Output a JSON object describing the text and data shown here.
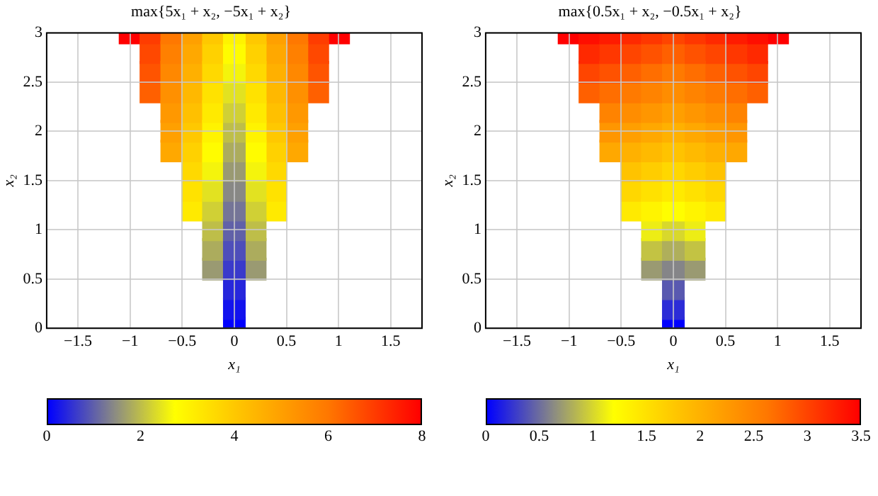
{
  "chart_data": [
    {
      "type": "scatter",
      "title": "max{5x₁ + x₂, −5x₁ + x₂}",
      "xlabel": "x₁",
      "ylabel": "x₂",
      "xlim": [
        -1.8,
        1.8
      ],
      "xticks": [
        -1.5,
        -1,
        -0.5,
        0,
        0.5,
        1,
        1.5
      ],
      "ylim": [
        0,
        3
      ],
      "yticks": [
        0,
        0.5,
        1,
        1.5,
        2,
        2.5,
        3
      ],
      "grid": true,
      "marker": "square",
      "clim": [
        0,
        8
      ],
      "cticks": [
        0,
        2,
        4,
        6,
        8
      ],
      "series": [
        {
          "x": [
            0,
            0,
            0,
            0,
            0,
            0,
            0,
            0,
            0,
            0,
            0,
            0,
            0,
            0,
            0,
            0
          ],
          "values": [
            0,
            0.2,
            0.4,
            0.6,
            0.8,
            1,
            1.2,
            1.4,
            1.6,
            1.8,
            2,
            2.2,
            2.4,
            2.6,
            2.8,
            3
          ],
          "cvalues": [
            0,
            0.2,
            0.4,
            0.6,
            0.8,
            1,
            1.2,
            1.4,
            1.6,
            1.8,
            2,
            2.2,
            2.4,
            2.6,
            2.8,
            3
          ],
          "colors": [
            "#0000ff",
            "#1313ee",
            "#2727dc",
            "#3a3acb",
            "#4e4eba",
            "#6161a8",
            "#757597",
            "#888885",
            "#9a9a72",
            "#acac5d",
            "#bebe49",
            "#d0d035",
            "#e2e221",
            "#f4f40c",
            "#fffc00",
            "#fff300"
          ]
        },
        {
          "x": [
            -0.2,
            -0.2,
            -0.2,
            -0.2,
            -0.2,
            -0.2,
            -0.2,
            -0.2,
            -0.2,
            -0.2,
            -0.2,
            -0.2,
            -0.2
          ],
          "values": [
            0.6,
            0.8,
            1,
            1.2,
            1.4,
            1.6,
            1.8,
            2,
            2.2,
            2.4,
            2.6,
            2.8,
            3
          ],
          "cvalues": [
            1.6,
            1.8,
            2,
            2.2,
            2.4,
            2.6,
            2.8,
            3,
            3.2,
            3.4,
            3.6,
            3.8,
            4
          ],
          "colors": [
            "#9a9a72",
            "#acac5d",
            "#bebe49",
            "#d0d035",
            "#e2e221",
            "#f4f40c",
            "#fffc00",
            "#fff300",
            "#ffea00",
            "#ffe200",
            "#ffd900",
            "#ffd100",
            "#ffc800"
          ]
        },
        {
          "x": [
            0.2,
            0.2,
            0.2,
            0.2,
            0.2,
            0.2,
            0.2,
            0.2,
            0.2,
            0.2,
            0.2,
            0.2,
            0.2
          ],
          "values": [
            0.6,
            0.8,
            1,
            1.2,
            1.4,
            1.6,
            1.8,
            2,
            2.2,
            2.4,
            2.6,
            2.8,
            3
          ],
          "cvalues": [
            1.6,
            1.8,
            2,
            2.2,
            2.4,
            2.6,
            2.8,
            3,
            3.2,
            3.4,
            3.6,
            3.8,
            4
          ],
          "colors": [
            "#9a9a72",
            "#acac5d",
            "#bebe49",
            "#d0d035",
            "#e2e221",
            "#f4f40c",
            "#fffc00",
            "#fff300",
            "#ffea00",
            "#ffe200",
            "#ffd900",
            "#ffd100",
            "#ffc800"
          ]
        },
        {
          "x": [
            -0.4,
            -0.4,
            -0.4,
            -0.4,
            -0.4,
            -0.4,
            -0.4,
            -0.4,
            -0.4,
            -0.4
          ],
          "values": [
            1.2,
            1.4,
            1.6,
            1.8,
            2,
            2.2,
            2.4,
            2.6,
            2.8,
            3
          ],
          "cvalues": [
            3.2,
            3.4,
            3.6,
            3.8,
            4,
            4.2,
            4.4,
            4.6,
            4.8,
            5
          ],
          "colors": [
            "#ffea00",
            "#ffe200",
            "#ffd900",
            "#ffd100",
            "#ffc800",
            "#ffc000",
            "#ffb800",
            "#ffb000",
            "#ffa800",
            "#ffa000"
          ]
        },
        {
          "x": [
            0.4,
            0.4,
            0.4,
            0.4,
            0.4,
            0.4,
            0.4,
            0.4,
            0.4,
            0.4
          ],
          "values": [
            1.2,
            1.4,
            1.6,
            1.8,
            2,
            2.2,
            2.4,
            2.6,
            2.8,
            3
          ],
          "cvalues": [
            3.2,
            3.4,
            3.6,
            3.8,
            4,
            4.2,
            4.4,
            4.6,
            4.8,
            5
          ],
          "colors": [
            "#ffea00",
            "#ffe200",
            "#ffd900",
            "#ffd100",
            "#ffc800",
            "#ffc000",
            "#ffb800",
            "#ffb000",
            "#ffa800",
            "#ffa000"
          ]
        },
        {
          "x": [
            -0.6,
            -0.6,
            -0.6,
            -0.6,
            -0.6,
            -0.6,
            -0.6
          ],
          "values": [
            1.8,
            2,
            2.2,
            2.4,
            2.6,
            2.8,
            3
          ],
          "cvalues": [
            4.8,
            5,
            5.2,
            5.4,
            5.6,
            5.8,
            6
          ],
          "colors": [
            "#ffa800",
            "#ffa000",
            "#ff9800",
            "#ff9000",
            "#ff8800",
            "#ff8000",
            "#ff7800"
          ]
        },
        {
          "x": [
            0.6,
            0.6,
            0.6,
            0.6,
            0.6,
            0.6,
            0.6
          ],
          "values": [
            1.8,
            2,
            2.2,
            2.4,
            2.6,
            2.8,
            3
          ],
          "cvalues": [
            4.8,
            5,
            5.2,
            5.4,
            5.6,
            5.8,
            6
          ],
          "colors": [
            "#ffa800",
            "#ffa000",
            "#ff9800",
            "#ff9000",
            "#ff8800",
            "#ff8000",
            "#ff7800"
          ]
        },
        {
          "x": [
            -0.8,
            -0.8,
            -0.8,
            -0.8
          ],
          "values": [
            2.4,
            2.6,
            2.8,
            3
          ],
          "cvalues": [
            6.4,
            6.6,
            6.8,
            7
          ],
          "colors": [
            "#ff6000",
            "#ff5400",
            "#ff4800",
            "#ff3c00"
          ]
        },
        {
          "x": [
            0.8,
            0.8,
            0.8,
            0.8
          ],
          "values": [
            2.4,
            2.6,
            2.8,
            3
          ],
          "cvalues": [
            6.4,
            6.6,
            6.8,
            7
          ],
          "colors": [
            "#ff6000",
            "#ff5400",
            "#ff4800",
            "#ff3c00"
          ]
        },
        {
          "x": [
            -1
          ],
          "values": [
            3
          ],
          "cvalues": [
            8
          ],
          "color": "#ff0000"
        },
        {
          "x": [
            1
          ],
          "values": [
            3
          ],
          "cvalues": [
            8
          ],
          "color": "#ff0000"
        }
      ]
    },
    {
      "type": "scatter",
      "title": "max{0.5x₁ + x₂, −0.5x₁ + x₂}",
      "xlabel": "x₁",
      "ylabel": "x₂",
      "xlim": [
        -1.8,
        1.8
      ],
      "xticks": [
        -1.5,
        -1,
        -0.5,
        0,
        0.5,
        1,
        1.5
      ],
      "ylim": [
        0,
        3
      ],
      "yticks": [
        0,
        0.5,
        1,
        1.5,
        2,
        2.5,
        3
      ],
      "grid": true,
      "marker": "square",
      "clim": [
        0,
        3.5
      ],
      "cticks": [
        0,
        0.5,
        1,
        1.5,
        2,
        2.5,
        3,
        3.5
      ],
      "series": [
        {
          "x": [
            0,
            0,
            0,
            0,
            0,
            0,
            0,
            0,
            0,
            0,
            0,
            0,
            0,
            0,
            0,
            0
          ],
          "values": [
            0,
            0.2,
            0.4,
            0.6,
            0.8,
            1,
            1.2,
            1.4,
            1.6,
            1.8,
            2,
            2.2,
            2.4,
            2.6,
            2.8,
            3
          ],
          "cvalues": [
            0,
            0.2,
            0.4,
            0.6,
            0.8,
            1,
            1.2,
            1.4,
            1.6,
            1.8,
            2,
            2.2,
            2.4,
            2.6,
            2.8,
            3
          ],
          "colors": [
            "#0000ff",
            "#2c2cd7",
            "#5959b0",
            "#858588",
            "#afaf5b",
            "#d8d82c",
            "#fffe00",
            "#ffea00",
            "#ffd700",
            "#ffc300",
            "#ffb100",
            "#ff9f00",
            "#ff8d00",
            "#ff7a00",
            "#ff6000",
            "#ff4500"
          ]
        },
        {
          "x": [
            -0.2,
            -0.2,
            -0.2,
            -0.2,
            -0.2,
            -0.2,
            -0.2,
            -0.2,
            -0.2,
            -0.2,
            -0.2,
            -0.2,
            -0.2
          ],
          "values": [
            0.6,
            0.8,
            1,
            1.2,
            1.4,
            1.6,
            1.8,
            2,
            2.2,
            2.4,
            2.6,
            2.8,
            3
          ],
          "cvalues": [
            0.7,
            0.9,
            1.1,
            1.3,
            1.5,
            1.7,
            1.9,
            2.1,
            2.3,
            2.5,
            2.7,
            2.9,
            3.1
          ],
          "colors": [
            "#9a9a72",
            "#c3c343",
            "#eded15",
            "#fff400",
            "#ffe100",
            "#ffcd00",
            "#ffba00",
            "#ffa800",
            "#ff9600",
            "#ff8300",
            "#ff6e00",
            "#ff5200",
            "#ff3700"
          ]
        },
        {
          "x": [
            0.2,
            0.2,
            0.2,
            0.2,
            0.2,
            0.2,
            0.2,
            0.2,
            0.2,
            0.2,
            0.2,
            0.2,
            0.2
          ],
          "values": [
            0.6,
            0.8,
            1,
            1.2,
            1.4,
            1.6,
            1.8,
            2,
            2.2,
            2.4,
            2.6,
            2.8,
            3
          ],
          "cvalues": [
            0.7,
            0.9,
            1.1,
            1.3,
            1.5,
            1.7,
            1.9,
            2.1,
            2.3,
            2.5,
            2.7,
            2.9,
            3.1
          ],
          "colors": [
            "#9a9a72",
            "#c3c343",
            "#eded15",
            "#fff400",
            "#ffe100",
            "#ffcd00",
            "#ffba00",
            "#ffa800",
            "#ff9600",
            "#ff8300",
            "#ff6e00",
            "#ff5200",
            "#ff3700"
          ]
        },
        {
          "x": [
            -0.4,
            -0.4,
            -0.4,
            -0.4,
            -0.4,
            -0.4,
            -0.4,
            -0.4,
            -0.4,
            -0.4
          ],
          "values": [
            1.2,
            1.4,
            1.6,
            1.8,
            2,
            2.2,
            2.4,
            2.6,
            2.8,
            3
          ],
          "cvalues": [
            1.4,
            1.6,
            1.8,
            2,
            2.2,
            2.4,
            2.6,
            2.8,
            3,
            3.2
          ],
          "colors": [
            "#ffea00",
            "#ffd700",
            "#ffc300",
            "#ffb100",
            "#ff9f00",
            "#ff8d00",
            "#ff7a00",
            "#ff6000",
            "#ff4500",
            "#ff2900"
          ]
        },
        {
          "x": [
            0.4,
            0.4,
            0.4,
            0.4,
            0.4,
            0.4,
            0.4,
            0.4,
            0.4,
            0.4
          ],
          "values": [
            1.2,
            1.4,
            1.6,
            1.8,
            2,
            2.2,
            2.4,
            2.6,
            2.8,
            3
          ],
          "cvalues": [
            1.4,
            1.6,
            1.8,
            2,
            2.2,
            2.4,
            2.6,
            2.8,
            3,
            3.2
          ],
          "colors": [
            "#ffea00",
            "#ffd700",
            "#ffc300",
            "#ffb100",
            "#ff9f00",
            "#ff8d00",
            "#ff7a00",
            "#ff6000",
            "#ff4500",
            "#ff2900"
          ]
        },
        {
          "x": [
            -0.6,
            -0.6,
            -0.6,
            -0.6,
            -0.6,
            -0.6,
            -0.6
          ],
          "values": [
            1.8,
            2,
            2.2,
            2.4,
            2.6,
            2.8,
            3
          ],
          "cvalues": [
            2.1,
            2.3,
            2.5,
            2.7,
            2.9,
            3.1,
            3.3
          ],
          "colors": [
            "#ffa800",
            "#ff9600",
            "#ff8300",
            "#ff6e00",
            "#ff5200",
            "#ff3700",
            "#ff1b00"
          ]
        },
        {
          "x": [
            0.6,
            0.6,
            0.6,
            0.6,
            0.6,
            0.6,
            0.6
          ],
          "values": [
            1.8,
            2,
            2.2,
            2.4,
            2.6,
            2.8,
            3
          ],
          "cvalues": [
            2.1,
            2.3,
            2.5,
            2.7,
            2.9,
            3.1,
            3.3
          ],
          "colors": [
            "#ffa800",
            "#ff9600",
            "#ff8300",
            "#ff6e00",
            "#ff5200",
            "#ff3700",
            "#ff1b00"
          ]
        },
        {
          "x": [
            -0.8,
            -0.8,
            -0.8,
            -0.8
          ],
          "values": [
            2.4,
            2.6,
            2.8,
            3
          ],
          "cvalues": [
            2.8,
            3,
            3.2,
            3.4
          ],
          "colors": [
            "#ff6000",
            "#ff4500",
            "#ff2900",
            "#ff0e00"
          ]
        },
        {
          "x": [
            0.8,
            0.8,
            0.8,
            0.8
          ],
          "values": [
            2.4,
            2.6,
            2.8,
            3
          ],
          "cvalues": [
            2.8,
            3,
            3.2,
            3.4
          ],
          "colors": [
            "#ff6000",
            "#ff4500",
            "#ff2900",
            "#ff0e00"
          ]
        },
        {
          "x": [
            -1
          ],
          "values": [
            3
          ],
          "cvalues": [
            3.5
          ],
          "color": "#ff0000"
        },
        {
          "x": [
            1
          ],
          "values": [
            3
          ],
          "cvalues": [
            3.5
          ],
          "color": "#ff0000"
        }
      ]
    }
  ]
}
